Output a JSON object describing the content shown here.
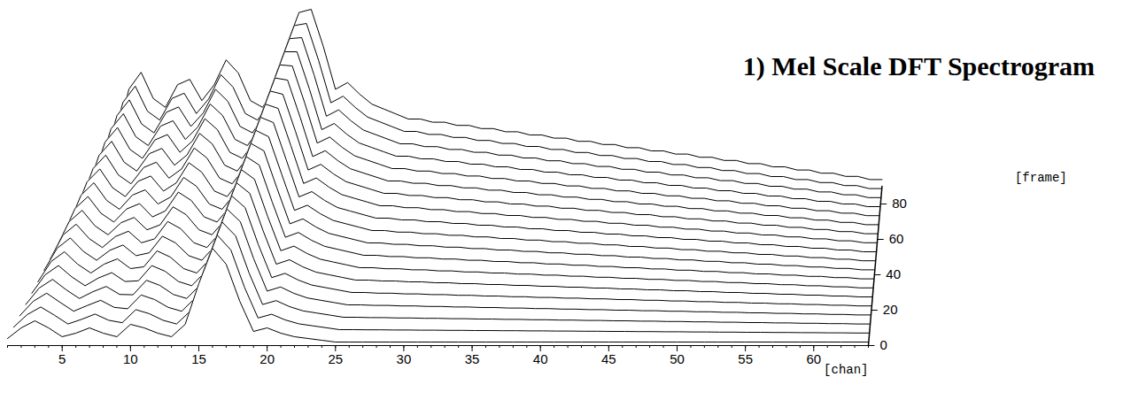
{
  "chart_data": {
    "type": "waterfall",
    "title": "1) Mel Scale DFT Spectrogram",
    "xlabel": "[chan]",
    "zlabel": "[frame]",
    "color": "#000000",
    "x": [
      1,
      2,
      3,
      4,
      5,
      6,
      7,
      8,
      9,
      10,
      11,
      12,
      13,
      14,
      15,
      16,
      17,
      18,
      19,
      20,
      21,
      22,
      23,
      24,
      25,
      26,
      27,
      28,
      29,
      30,
      31,
      32,
      33,
      34,
      35,
      36,
      37,
      38,
      39,
      40,
      41,
      42,
      43,
      44,
      45,
      46,
      47,
      48,
      49,
      50,
      51,
      52,
      53,
      54,
      55,
      56,
      57,
      58,
      59,
      60,
      61,
      62,
      63,
      64
    ],
    "xlim": [
      1,
      64
    ],
    "xticks": [
      5,
      10,
      15,
      20,
      25,
      30,
      35,
      40,
      45,
      50,
      55,
      60
    ],
    "ylim": [
      0,
      100
    ],
    "zlim": [
      0,
      90
    ],
    "zticks": [
      0,
      20,
      40,
      60,
      80
    ],
    "frames": [
      0,
      5,
      10,
      15,
      20,
      25,
      30,
      35,
      40,
      45,
      50,
      55,
      60,
      65,
      70,
      75,
      80,
      85,
      90
    ],
    "values": [
      [
        4,
        10,
        14,
        10,
        5,
        7,
        10,
        7,
        5,
        12,
        10,
        7,
        5,
        12,
        35,
        55,
        46,
        25,
        8,
        10,
        7,
        5,
        4,
        3,
        2,
        2,
        2,
        2,
        2,
        2,
        2,
        2,
        2,
        2,
        2,
        2,
        2,
        2,
        2,
        2,
        2,
        2,
        2,
        2,
        2,
        2,
        2,
        2,
        2,
        2,
        2,
        2,
        2,
        2,
        2,
        2,
        2,
        2,
        2,
        2,
        2,
        2,
        2,
        2
      ],
      [
        5.4,
        12.5,
        16.8,
        12.2,
        7.2,
        9.8,
        12.8,
        9.3,
        7.9,
        15.3,
        13,
        9.3,
        7.2,
        14.4,
        37.5,
        57.4,
        49,
        28,
        10.6,
        12.7,
        9.5,
        7.3,
        6.2,
        5.1,
        4,
        4,
        3.9,
        3.9,
        3.8,
        3.8,
        3.7,
        3.7,
        3.6,
        3.6,
        3.5,
        3.5,
        3.4,
        3.4,
        3.3,
        3.3,
        3.2,
        3.2,
        3.1,
        3.1,
        3,
        3,
        2.9,
        2.9,
        2.8,
        2.8,
        2.7,
        2.7,
        2.6,
        2.6,
        2.5,
        2.5,
        2.4,
        2.4,
        2.3,
        2.3,
        2.2,
        2.2,
        2.1,
        2.1
      ],
      [
        6.8,
        15,
        19.6,
        14.4,
        9.4,
        12.6,
        15.6,
        11.6,
        10.8,
        18.6,
        16,
        11.6,
        9.4,
        16.8,
        40,
        59.8,
        52,
        31,
        13.2,
        15.4,
        12,
        9.6,
        8.4,
        7.2,
        6,
        6,
        5.8,
        5.8,
        5.6,
        5.6,
        5.4,
        5.4,
        5.2,
        5.2,
        5,
        5,
        4.8,
        4.8,
        4.6,
        4.6,
        4.4,
        4.4,
        4.2,
        4.2,
        4,
        4,
        3.8,
        3.8,
        3.6,
        3.6,
        3.4,
        3.4,
        3.2,
        3.2,
        3,
        3,
        2.8,
        2.8,
        2.6,
        2.6,
        2.4,
        2.4,
        2.2,
        2.2
      ],
      [
        8.2,
        17.5,
        22.4,
        16.6,
        11.6,
        15.4,
        18.4,
        13.9,
        13.7,
        21.9,
        19,
        13.9,
        11.6,
        19.2,
        42.5,
        62.2,
        55,
        34,
        15.8,
        18.1,
        14.5,
        11.9,
        10.6,
        9.3,
        8,
        8,
        7.7,
        7.7,
        7.4,
        7.4,
        7.1,
        7.1,
        6.8,
        6.8,
        6.5,
        6.5,
        6.2,
        6.2,
        5.9,
        5.9,
        5.6,
        5.6,
        5.3,
        5.3,
        5,
        5,
        4.7,
        4.7,
        4.4,
        4.4,
        4.1,
        4.1,
        3.8,
        3.8,
        3.5,
        3.5,
        3.2,
        3.2,
        2.9,
        2.9,
        2.6,
        2.6,
        2.3,
        2.3
      ],
      [
        9.6,
        20,
        25.2,
        18.8,
        13.8,
        18.2,
        21.2,
        16.2,
        16.6,
        25.2,
        22,
        16.2,
        13.8,
        21.6,
        45,
        64.6,
        58,
        37,
        18.4,
        20.8,
        17,
        14.2,
        12.8,
        11.4,
        10,
        10,
        9.6,
        9.6,
        9.2,
        9.2,
        8.8,
        8.8,
        8.4,
        8.4,
        8,
        8,
        7.6,
        7.6,
        7.2,
        7.2,
        6.8,
        6.8,
        6.4,
        6.4,
        6,
        6,
        5.6,
        5.6,
        5.2,
        5.2,
        4.8,
        4.8,
        4.4,
        4.4,
        4,
        4,
        3.6,
        3.6,
        3.2,
        3.2,
        2.8,
        2.8,
        2.4,
        2.4
      ],
      [
        11,
        22.5,
        28,
        21,
        16,
        21,
        24,
        18.5,
        19.5,
        28.5,
        25,
        18.5,
        16,
        24,
        47.5,
        67,
        61,
        40,
        21,
        23.5,
        19.5,
        16.5,
        15,
        13.5,
        12,
        12,
        11.5,
        11.5,
        11,
        11,
        10.5,
        10.5,
        10,
        10,
        9.5,
        9.5,
        9,
        9,
        8.5,
        8.5,
        8,
        8,
        7.5,
        7.5,
        7,
        7,
        6.5,
        6.5,
        6,
        6,
        5.5,
        5.5,
        5,
        5,
        4.5,
        4.5,
        4,
        4,
        3.5,
        3.5,
        3,
        3,
        2.5,
        2.5
      ],
      [
        12.4,
        25,
        30.8,
        23.2,
        18.2,
        23.8,
        26.8,
        20.8,
        22.4,
        31.8,
        28,
        20.8,
        18.2,
        26.4,
        50,
        69.4,
        64,
        43,
        23.6,
        26.2,
        22,
        18.8,
        17.2,
        15.6,
        14,
        14,
        13.4,
        13.4,
        12.8,
        12.8,
        12.2,
        12.2,
        11.6,
        11.6,
        11,
        11,
        10.4,
        10.4,
        9.8,
        9.8,
        9.2,
        9.2,
        8.6,
        8.6,
        8,
        8,
        7.4,
        7.4,
        6.8,
        6.8,
        6.2,
        6.2,
        5.6,
        5.6,
        5,
        5,
        4.4,
        4.4,
        3.8,
        3.8,
        3.2,
        3.2,
        2.6,
        2.6
      ],
      [
        13.8,
        27.5,
        33.6,
        25.4,
        20.4,
        26.6,
        29.6,
        23.1,
        25.3,
        35.1,
        31,
        23.1,
        20.4,
        28.8,
        52.5,
        71.8,
        67,
        46,
        26.2,
        28.9,
        24.5,
        21.1,
        19.4,
        17.7,
        16,
        16,
        15.3,
        15.3,
        14.6,
        14.6,
        13.9,
        13.9,
        13.2,
        13.2,
        12.5,
        12.5,
        11.8,
        11.8,
        11.1,
        11.1,
        10.4,
        10.4,
        9.7,
        9.7,
        9,
        9,
        8.3,
        8.3,
        7.6,
        7.6,
        6.9,
        6.9,
        6.2,
        6.2,
        5.5,
        5.5,
        4.8,
        4.8,
        4.1,
        4.1,
        3.4,
        3.4,
        2.7,
        2.7
      ],
      [
        15.2,
        30,
        36.4,
        27.6,
        22.6,
        29.4,
        32.4,
        25.4,
        28.2,
        38.4,
        34,
        25.4,
        22.6,
        31.2,
        55,
        74.2,
        70,
        49,
        28.8,
        31.6,
        27,
        23.4,
        21.6,
        19.8,
        18,
        18,
        17.2,
        17.2,
        16.4,
        16.4,
        15.6,
        15.6,
        14.8,
        14.8,
        14,
        14,
        13.2,
        13.2,
        12.4,
        12.4,
        11.6,
        11.6,
        10.8,
        10.8,
        10,
        10,
        9.2,
        9.2,
        8.4,
        8.4,
        7.6,
        7.6,
        6.8,
        6.8,
        6,
        6,
        5.2,
        5.2,
        4.4,
        4.4,
        3.6,
        3.6,
        2.8,
        2.8
      ],
      [
        16.6,
        32.5,
        39.2,
        29.8,
        24.8,
        32.2,
        35.2,
        27.7,
        31.1,
        41.7,
        37,
        27.7,
        24.8,
        33.6,
        57.5,
        76.6,
        73,
        52,
        31.4,
        34.3,
        29.5,
        25.7,
        23.8,
        21.9,
        20,
        20,
        19.1,
        19.1,
        18.2,
        18.2,
        17.3,
        17.3,
        16.4,
        16.4,
        15.5,
        15.5,
        14.6,
        14.6,
        13.7,
        13.7,
        12.8,
        12.8,
        11.9,
        11.9,
        11,
        11,
        10.1,
        10.1,
        9.2,
        9.2,
        8.3,
        8.3,
        7.4,
        7.4,
        6.5,
        6.5,
        5.6,
        5.6,
        4.7,
        4.7,
        3.8,
        3.8,
        2.9,
        2.9
      ],
      [
        18,
        35,
        42,
        32,
        27,
        35,
        38,
        30,
        34,
        45,
        40,
        30,
        27,
        36,
        60,
        79,
        76,
        55,
        34,
        37,
        32,
        28,
        26,
        24,
        22,
        22,
        21,
        21,
        20,
        20,
        19,
        19,
        18,
        18,
        17,
        17,
        16,
        16,
        15,
        15,
        14,
        14,
        13,
        13,
        12,
        12,
        11,
        11,
        10,
        10,
        9,
        9,
        8,
        8,
        7,
        7,
        6,
        6,
        5,
        5,
        4,
        4,
        3,
        3
      ],
      [
        19.4,
        37.5,
        44.8,
        34.2,
        29.2,
        37.8,
        40.8,
        32.3,
        36.9,
        48.3,
        43,
        32.3,
        29.2,
        38.4,
        62.5,
        81.4,
        79,
        58,
        36.6,
        39.7,
        34.5,
        30.3,
        28.2,
        26.1,
        24,
        24,
        22.9,
        22.9,
        21.8,
        21.8,
        20.7,
        20.7,
        19.6,
        19.6,
        18.5,
        18.5,
        17.4,
        17.4,
        16.3,
        16.3,
        15.2,
        15.2,
        14.1,
        14.1,
        13,
        13,
        11.9,
        11.9,
        10.8,
        10.8,
        9.7,
        9.7,
        8.6,
        8.6,
        7.5,
        7.5,
        6.4,
        6.4,
        5.3,
        5.3,
        4.2,
        4.2,
        3.1,
        3.1
      ],
      [
        20.8,
        40,
        47.6,
        36.4,
        31.4,
        40.6,
        43.6,
        34.6,
        39.8,
        51.6,
        46,
        34.6,
        31.4,
        40.8,
        65,
        83.8,
        82,
        61,
        39.2,
        42.4,
        37,
        32.6,
        30.4,
        28.2,
        26,
        26,
        24.8,
        24.8,
        23.6,
        23.6,
        22.4,
        22.4,
        21.2,
        21.2,
        20,
        20,
        18.8,
        18.8,
        17.6,
        17.6,
        16.4,
        16.4,
        15.2,
        15.2,
        14,
        14,
        12.8,
        12.8,
        11.6,
        11.6,
        10.4,
        10.4,
        9.2,
        9.2,
        8,
        8,
        6.8,
        6.8,
        5.6,
        5.6,
        4.4,
        4.4,
        3.2,
        3.2
      ],
      [
        22.2,
        42.5,
        50.4,
        38.6,
        33.6,
        43.4,
        46.4,
        36.9,
        42.7,
        54.9,
        49,
        36.9,
        33.6,
        43.2,
        67.5,
        86.2,
        85,
        64,
        41.8,
        45.1,
        39.5,
        34.9,
        32.6,
        30.3,
        28,
        28,
        26.7,
        26.7,
        25.4,
        25.4,
        24.1,
        24.1,
        22.8,
        22.8,
        21.5,
        21.5,
        20.2,
        20.2,
        18.9,
        18.9,
        17.6,
        17.6,
        16.3,
        16.3,
        15,
        15,
        13.7,
        13.7,
        12.4,
        12.4,
        11.1,
        11.1,
        9.8,
        9.8,
        8.5,
        8.5,
        7.2,
        7.2,
        5.9,
        5.9,
        4.6,
        4.6,
        3.3,
        3.3
      ],
      [
        23.6,
        45,
        53.2,
        40.8,
        35.8,
        46.2,
        49.2,
        39.2,
        45.6,
        58.2,
        52,
        39.2,
        35.8,
        45.6,
        70,
        88.6,
        88,
        67,
        44.4,
        47.8,
        42,
        37.2,
        34.8,
        32.4,
        30,
        30,
        28.6,
        28.6,
        27.2,
        27.2,
        25.8,
        25.8,
        24.4,
        24.4,
        23,
        23,
        21.6,
        21.6,
        20.2,
        20.2,
        18.8,
        18.8,
        17.4,
        17.4,
        16,
        16,
        14.6,
        14.6,
        13.2,
        13.2,
        11.8,
        11.8,
        10.4,
        10.4,
        9,
        9,
        7.6,
        7.6,
        6.2,
        6.2,
        4.8,
        4.8,
        3.4,
        3.4
      ],
      [
        25,
        47.5,
        56,
        43,
        38,
        49,
        52,
        41.5,
        48.5,
        61.5,
        55,
        41.5,
        38,
        48,
        72.5,
        91,
        91,
        70,
        47,
        50.5,
        44.5,
        39.5,
        37,
        34.5,
        32,
        32,
        30.5,
        30.5,
        29,
        29,
        27.5,
        27.5,
        26,
        26,
        24.5,
        24.5,
        23,
        23,
        21.5,
        21.5,
        20,
        20,
        18.5,
        18.5,
        17,
        17,
        15.5,
        15.5,
        14,
        14,
        12.5,
        12.5,
        11,
        11,
        9.5,
        9.5,
        8,
        8,
        6.5,
        6.5,
        5,
        5,
        3.5,
        3.5
      ],
      [
        26.4,
        50,
        58.8,
        45.2,
        40.2,
        51.8,
        54.8,
        43.8,
        51.4,
        64.8,
        58,
        43.8,
        40.2,
        50.4,
        75,
        93.4,
        94,
        73,
        49.6,
        53.2,
        47,
        41.8,
        39.2,
        36.6,
        34,
        34,
        32.4,
        32.4,
        30.8,
        30.8,
        29.2,
        29.2,
        27.6,
        27.6,
        26,
        26,
        24.4,
        24.4,
        22.8,
        22.8,
        21.2,
        21.2,
        19.6,
        19.6,
        18,
        18,
        16.4,
        16.4,
        14.8,
        14.8,
        13.2,
        13.2,
        11.6,
        11.6,
        10,
        10,
        8.4,
        8.4,
        6.8,
        6.8,
        5.2,
        5.2,
        3.6,
        3.6
      ],
      [
        27.8,
        52.5,
        61.6,
        47.4,
        42.4,
        54.6,
        57.6,
        46.1,
        54.3,
        68.1,
        61,
        46.1,
        42.4,
        52.8,
        77.5,
        95.8,
        97,
        76,
        52.2,
        55.9,
        49.5,
        44.1,
        41.4,
        38.7,
        36,
        36,
        34.3,
        34.3,
        32.6,
        32.6,
        30.9,
        30.9,
        29.2,
        29.2,
        27.5,
        27.5,
        25.8,
        25.8,
        24.1,
        24.1,
        22.4,
        22.4,
        20.7,
        20.7,
        19,
        19,
        17.3,
        17.3,
        15.6,
        15.6,
        13.9,
        13.9,
        12.2,
        12.2,
        10.5,
        10.5,
        8.8,
        8.8,
        7.1,
        7.1,
        5.4,
        5.4,
        3.7,
        3.7
      ],
      [
        29.2,
        55,
        64.4,
        49.6,
        44.6,
        57.4,
        60.4,
        48.4,
        57.2,
        71.4,
        64,
        48.4,
        44.6,
        55.2,
        80,
        98.2,
        100,
        79,
        54.8,
        58.6,
        52,
        46.4,
        43.6,
        40.8,
        38,
        38,
        36.2,
        36.2,
        34.4,
        34.4,
        32.6,
        32.6,
        30.8,
        30.8,
        29,
        29,
        27.2,
        27.2,
        25.4,
        25.4,
        23.6,
        23.6,
        21.8,
        21.8,
        20,
        20,
        18.2,
        18.2,
        16.4,
        16.4,
        14.6,
        14.6,
        12.8,
        12.8,
        11,
        11,
        9.2,
        9.2,
        7.4,
        7.4,
        5.6,
        5.6,
        3.8,
        3.8
      ]
    ]
  }
}
